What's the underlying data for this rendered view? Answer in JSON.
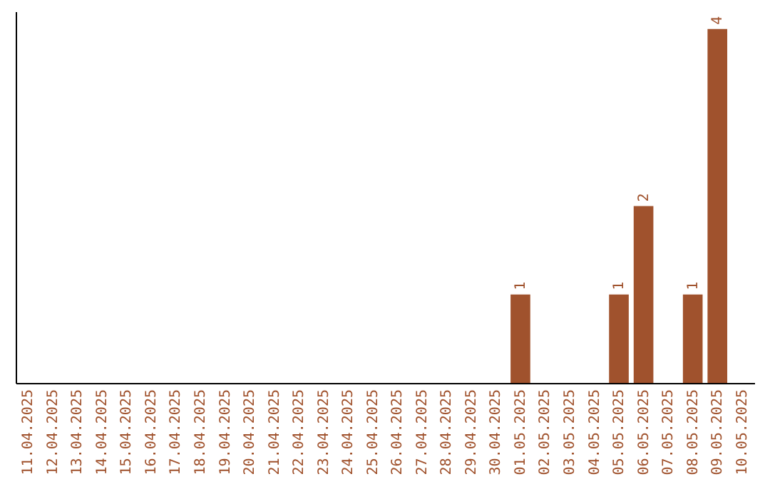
{
  "chart_data": {
    "type": "bar",
    "categories": [
      "11.04.2025",
      "12.04.2025",
      "13.04.2025",
      "14.04.2025",
      "15.04.2025",
      "16.04.2025",
      "17.04.2025",
      "18.04.2025",
      "19.04.2025",
      "20.04.2025",
      "21.04.2025",
      "22.04.2025",
      "23.04.2025",
      "24.04.2025",
      "25.04.2025",
      "26.04.2025",
      "27.04.2025",
      "28.04.2025",
      "29.04.2025",
      "30.04.2025",
      "01.05.2025",
      "02.05.2025",
      "03.05.2025",
      "04.05.2025",
      "05.05.2025",
      "06.05.2025",
      "07.05.2025",
      "08.05.2025",
      "09.05.2025",
      "10.05.2025"
    ],
    "values": [
      null,
      null,
      null,
      null,
      null,
      null,
      null,
      null,
      null,
      null,
      null,
      null,
      null,
      null,
      null,
      null,
      null,
      null,
      null,
      null,
      1,
      null,
      null,
      null,
      1,
      2,
      null,
      1,
      4,
      null
    ],
    "value_labels": [
      null,
      null,
      null,
      null,
      null,
      null,
      null,
      null,
      null,
      null,
      null,
      null,
      null,
      null,
      null,
      null,
      null,
      null,
      null,
      null,
      "1",
      null,
      null,
      null,
      "1",
      "2",
      null,
      "1",
      "4",
      null
    ],
    "color": "#a0522d",
    "ylim": [
      0,
      4.2
    ],
    "tick_labels": "x"
  }
}
